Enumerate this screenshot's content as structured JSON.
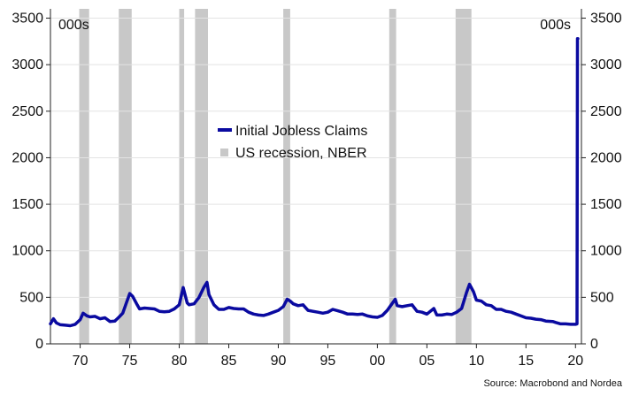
{
  "chart_data": {
    "type": "line",
    "title": "",
    "xlabel": "",
    "ylabel": "",
    "unit_left": "000s",
    "unit_right": "000s",
    "source": "Source: Macrobond and Nordea",
    "xlim": [
      1967.0,
      2020.6
    ],
    "ylim": [
      0,
      3600
    ],
    "x_ticks": [
      1970,
      1975,
      1980,
      1985,
      1990,
      1995,
      2000,
      2005,
      2010,
      2015,
      2020
    ],
    "x_tick_labels": [
      "70",
      "75",
      "80",
      "85",
      "90",
      "95",
      "00",
      "05",
      "10",
      "15",
      "20"
    ],
    "y_ticks": [
      0,
      500,
      1000,
      1500,
      2000,
      2500,
      3000,
      3500
    ],
    "y_tick_labels": [
      "0",
      "500",
      "1000",
      "1500",
      "2000",
      "2500",
      "3000",
      "3500"
    ],
    "grid": "horizontal",
    "legend_position": "center",
    "series": [
      {
        "name": "Initial Jobless Claims",
        "color": "#0a0aa0",
        "points": [
          [
            1967.0,
            215
          ],
          [
            1967.3,
            270
          ],
          [
            1967.6,
            225
          ],
          [
            1968.0,
            205
          ],
          [
            1968.5,
            200
          ],
          [
            1969.0,
            195
          ],
          [
            1969.5,
            210
          ],
          [
            1970.0,
            260
          ],
          [
            1970.3,
            330
          ],
          [
            1970.7,
            300
          ],
          [
            1971.0,
            290
          ],
          [
            1971.5,
            295
          ],
          [
            1972.0,
            270
          ],
          [
            1972.5,
            280
          ],
          [
            1973.0,
            240
          ],
          [
            1973.5,
            245
          ],
          [
            1973.9,
            285
          ],
          [
            1974.3,
            330
          ],
          [
            1974.7,
            450
          ],
          [
            1975.0,
            540
          ],
          [
            1975.3,
            510
          ],
          [
            1975.7,
            430
          ],
          [
            1976.0,
            375
          ],
          [
            1976.5,
            385
          ],
          [
            1977.0,
            380
          ],
          [
            1977.5,
            375
          ],
          [
            1978.0,
            350
          ],
          [
            1978.5,
            345
          ],
          [
            1979.0,
            350
          ],
          [
            1979.5,
            375
          ],
          [
            1980.0,
            420
          ],
          [
            1980.4,
            605
          ],
          [
            1980.8,
            440
          ],
          [
            1981.0,
            420
          ],
          [
            1981.5,
            430
          ],
          [
            1982.0,
            500
          ],
          [
            1982.5,
            610
          ],
          [
            1982.8,
            660
          ],
          [
            1983.0,
            530
          ],
          [
            1983.5,
            420
          ],
          [
            1984.0,
            370
          ],
          [
            1984.5,
            370
          ],
          [
            1985.0,
            390
          ],
          [
            1985.5,
            380
          ],
          [
            1986.0,
            375
          ],
          [
            1986.5,
            375
          ],
          [
            1987.0,
            340
          ],
          [
            1987.5,
            320
          ],
          [
            1988.0,
            310
          ],
          [
            1988.5,
            305
          ],
          [
            1989.0,
            320
          ],
          [
            1989.5,
            340
          ],
          [
            1990.0,
            360
          ],
          [
            1990.5,
            400
          ],
          [
            1990.9,
            480
          ],
          [
            1991.2,
            460
          ],
          [
            1991.5,
            430
          ],
          [
            1992.0,
            410
          ],
          [
            1992.5,
            420
          ],
          [
            1993.0,
            360
          ],
          [
            1993.5,
            350
          ],
          [
            1994.0,
            340
          ],
          [
            1994.5,
            330
          ],
          [
            1995.0,
            340
          ],
          [
            1995.5,
            370
          ],
          [
            1996.0,
            355
          ],
          [
            1996.5,
            340
          ],
          [
            1997.0,
            320
          ],
          [
            1997.5,
            320
          ],
          [
            1998.0,
            315
          ],
          [
            1998.5,
            320
          ],
          [
            1999.0,
            300
          ],
          [
            1999.5,
            290
          ],
          [
            2000.0,
            285
          ],
          [
            2000.5,
            305
          ],
          [
            2001.0,
            360
          ],
          [
            2001.4,
            420
          ],
          [
            2001.8,
            480
          ],
          [
            2002.0,
            410
          ],
          [
            2002.5,
            400
          ],
          [
            2003.0,
            410
          ],
          [
            2003.5,
            420
          ],
          [
            2004.0,
            350
          ],
          [
            2004.5,
            340
          ],
          [
            2005.0,
            320
          ],
          [
            2005.7,
            380
          ],
          [
            2006.0,
            310
          ],
          [
            2006.5,
            310
          ],
          [
            2007.0,
            320
          ],
          [
            2007.5,
            315
          ],
          [
            2008.0,
            340
          ],
          [
            2008.5,
            380
          ],
          [
            2009.0,
            550
          ],
          [
            2009.3,
            640
          ],
          [
            2009.7,
            560
          ],
          [
            2010.0,
            470
          ],
          [
            2010.5,
            460
          ],
          [
            2011.0,
            420
          ],
          [
            2011.5,
            410
          ],
          [
            2012.0,
            370
          ],
          [
            2012.5,
            370
          ],
          [
            2013.0,
            350
          ],
          [
            2013.5,
            340
          ],
          [
            2014.0,
            320
          ],
          [
            2014.5,
            300
          ],
          [
            2015.0,
            280
          ],
          [
            2015.5,
            275
          ],
          [
            2016.0,
            265
          ],
          [
            2016.5,
            260
          ],
          [
            2017.0,
            245
          ],
          [
            2017.7,
            240
          ],
          [
            2018.0,
            230
          ],
          [
            2018.5,
            215
          ],
          [
            2019.0,
            215
          ],
          [
            2019.5,
            210
          ],
          [
            2020.0,
            210
          ],
          [
            2020.15,
            215
          ],
          [
            2020.2,
            3280
          ],
          [
            2020.24,
            3280
          ]
        ]
      },
      {
        "name": "US recession, NBER",
        "color": "#c8c8c8",
        "type": "bands",
        "ranges": [
          [
            1969.9,
            1970.9
          ],
          [
            1973.9,
            1975.2
          ],
          [
            1980.0,
            1980.5
          ],
          [
            1981.6,
            1982.9
          ],
          [
            1990.5,
            1991.2
          ],
          [
            2001.2,
            2001.9
          ],
          [
            2007.9,
            2009.5
          ]
        ]
      }
    ]
  }
}
